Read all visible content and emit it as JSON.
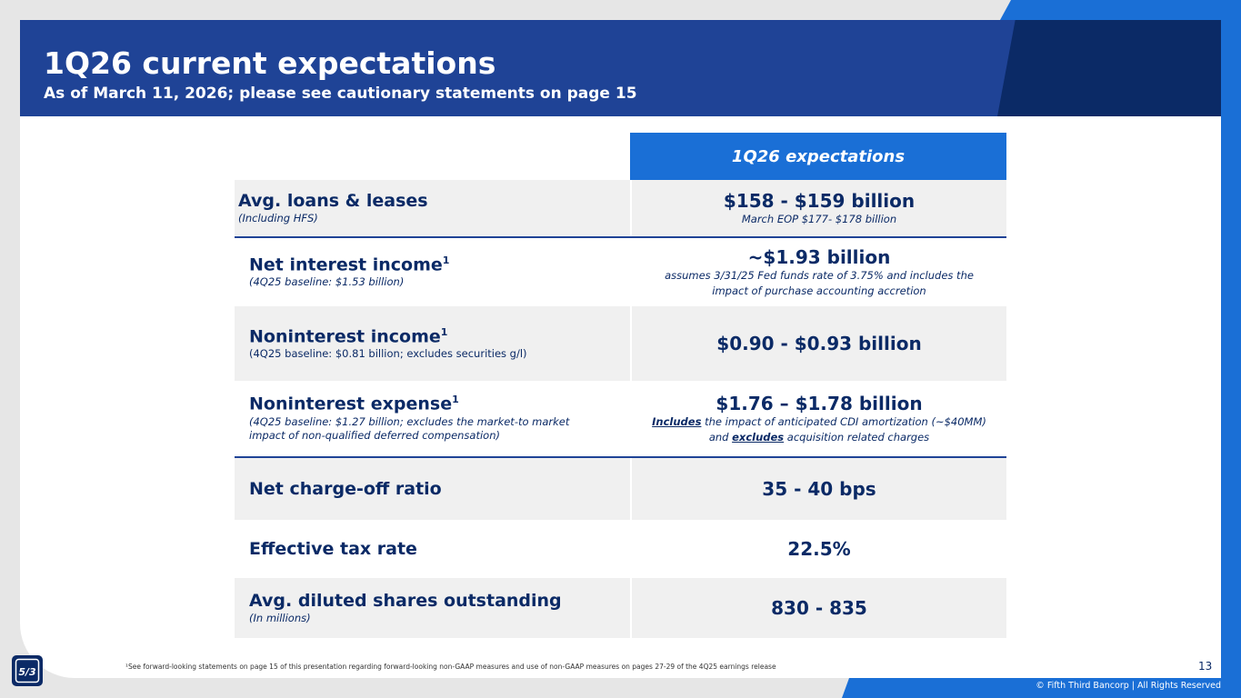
{
  "header": {
    "title": "1Q26 current expectations",
    "subtitle": "As of March 11, 2026; please see cautionary statements on page 15"
  },
  "table": {
    "column_header": "1Q26 expectations",
    "rows": [
      {
        "label": "Avg. loans & leases",
        "sub": "(Including HFS)",
        "value": "$158 - $159 billion",
        "value_sub": "March EOP $177- $178 billion"
      },
      {
        "label": "Net interest income",
        "sup": "1",
        "sub": "(4Q25 baseline: $1.53 billion)",
        "value": "~$1.93 billion",
        "value_sub": "assumes 3/31/25 Fed funds rate of 3.75% and includes the impact of purchase accounting accretion"
      },
      {
        "label": "Noninterest income",
        "sup": "1",
        "sub": "(4Q25 baseline: $0.81 billion; excludes securities g/l)",
        "value": "$0.90 - $0.93 billion"
      },
      {
        "label": "Noninterest expense",
        "sup": "1",
        "sub": "(4Q25 baseline: $1.27 billion; excludes the market-to market impact of non-qualified deferred compensation)",
        "value": "$1.76 – $1.78 billion",
        "value_sub_parts": {
          "includes": "Includes",
          "middle": " the impact of anticipated CDI amortization (~$40MM) and ",
          "excludes": "excludes",
          "end": " acquisition related charges"
        }
      },
      {
        "label": "Net charge-off ratio",
        "value": "35 - 40 bps"
      },
      {
        "label": "Effective tax rate",
        "value": "22.5%"
      },
      {
        "label": "Avg. diluted shares outstanding",
        "sub": "(In millions)",
        "value": "830 - 835"
      }
    ]
  },
  "footer": {
    "footnote": "¹See forward-looking statements on page 15 of this presentation regarding forward-looking non-GAAP measures and use of non-GAAP measures on pages 27-29 of the 4Q25 earnings release",
    "page_number": "13",
    "copyright": "© Fifth Third Bancorp | All Rights Reserved",
    "logo_text": "5/3"
  },
  "colors": {
    "navy": "#0b2a66",
    "header_blue": "#1f4396",
    "accent_blue": "#1a6fd6",
    "row_shade": "#f0f0f0"
  }
}
